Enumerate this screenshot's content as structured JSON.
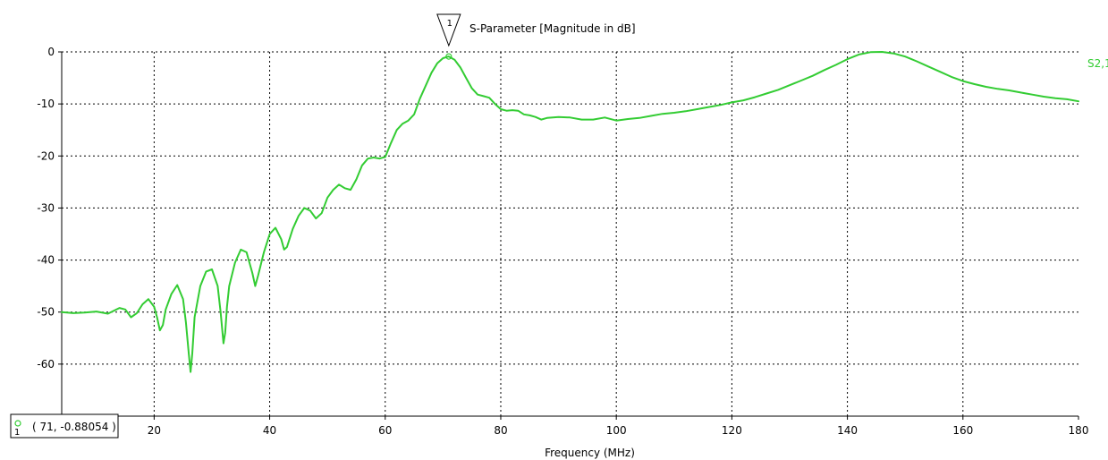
{
  "chart_data": {
    "type": "line",
    "title": "S-Parameter [Magnitude in dB]",
    "xlabel": "Frequency (MHz)",
    "ylabel": "",
    "xlim": [
      4,
      180
    ],
    "ylim": [
      -70,
      0
    ],
    "x_ticks": [
      20,
      40,
      60,
      80,
      100,
      120,
      140,
      160,
      180
    ],
    "y_ticks": [
      0,
      -10,
      -20,
      -30,
      -40,
      -50,
      -60
    ],
    "grid": true,
    "colors": {
      "series": "#33cc33",
      "grid": "#000000",
      "axis": "#000000"
    },
    "series": [
      {
        "name": "S2,1",
        "x": [
          4,
          6,
          8,
          10,
          12,
          14,
          15,
          16,
          17,
          18,
          19,
          20,
          20.5,
          21,
          21.5,
          22,
          23,
          24,
          25,
          25.5,
          26,
          26.3,
          26.6,
          27,
          28,
          29,
          30,
          31,
          31.5,
          32,
          32.3,
          32.6,
          33,
          34,
          35,
          36,
          37,
          37.5,
          38,
          39,
          40,
          41,
          42,
          42.5,
          43,
          44,
          45,
          46,
          47,
          48,
          49,
          50,
          51,
          52,
          53,
          54,
          55,
          56,
          57,
          58,
          59,
          60,
          61,
          62,
          63,
          64,
          65,
          66,
          67,
          68,
          69,
          70,
          71,
          72,
          73,
          74,
          75,
          76,
          77,
          78,
          79,
          80,
          81,
          82,
          83,
          84,
          85,
          86,
          87,
          88,
          90,
          92,
          94,
          96,
          98,
          100,
          102,
          104,
          106,
          108,
          110,
          112,
          114,
          116,
          118,
          120,
          122,
          124,
          126,
          128,
          130,
          132,
          134,
          136,
          138,
          140,
          142,
          144,
          146,
          148,
          150,
          152,
          154,
          156,
          158,
          160,
          162,
          164,
          166,
          168,
          170,
          172,
          174,
          176,
          178,
          180
        ],
        "y": [
          -50,
          -50.2,
          -50.1,
          -49.9,
          -50.3,
          -49.2,
          -49.5,
          -51,
          -50.2,
          -48.5,
          -47.5,
          -49,
          -51,
          -53.5,
          -52.5,
          -49.5,
          -46.5,
          -44.8,
          -47.5,
          -52,
          -58,
          -61.5,
          -58,
          -51,
          -45,
          -42.2,
          -41.8,
          -45,
          -50,
          -56,
          -54,
          -49,
          -45,
          -40.5,
          -38,
          -38.5,
          -42.5,
          -45,
          -43,
          -38.5,
          -35,
          -33.8,
          -36,
          -38,
          -37.5,
          -34,
          -31.5,
          -30,
          -30.5,
          -32,
          -31,
          -28,
          -26.5,
          -25.5,
          -26.2,
          -26.5,
          -24.5,
          -21.8,
          -20.5,
          -20.3,
          -20.5,
          -20.2,
          -17.5,
          -15,
          -13.8,
          -13.2,
          -12,
          -9,
          -6.5,
          -4,
          -2.2,
          -1.2,
          -0.88,
          -1.5,
          -3,
          -5,
          -7,
          -8.2,
          -8.5,
          -8.8,
          -10,
          -11,
          -11.3,
          -11.2,
          -11.3,
          -12,
          -12.2,
          -12.5,
          -13,
          -12.7,
          -12.5,
          -12.6,
          -13,
          -13,
          -12.6,
          -13.2,
          -12.9,
          -12.7,
          -12.3,
          -11.9,
          -11.7,
          -11.4,
          -11,
          -10.6,
          -10.2,
          -9.7,
          -9.3,
          -8.7,
          -8,
          -7.3,
          -6.4,
          -5.5,
          -4.6,
          -3.5,
          -2.5,
          -1.4,
          -0.5,
          -0.05,
          0,
          -0.3,
          -0.9,
          -1.8,
          -2.8,
          -3.8,
          -4.8,
          -5.6,
          -6.2,
          -6.7,
          -7.1,
          -7.4,
          -7.8,
          -8.2,
          -8.6,
          -8.9,
          -9.1,
          -9.5
        ]
      }
    ],
    "marker": {
      "id": "1",
      "x": 71,
      "y": -0.88054,
      "readout": "( 71, -0.88054 )"
    }
  }
}
